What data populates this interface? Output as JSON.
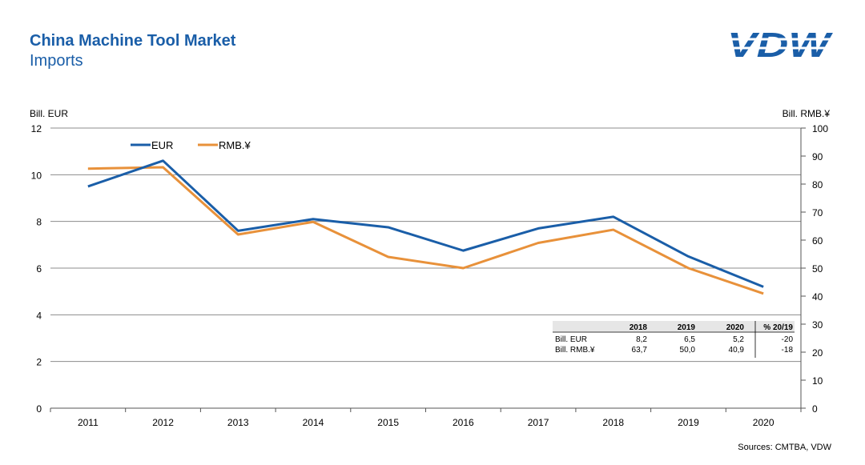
{
  "header": {
    "title": "China Machine Tool Market",
    "subtitle": "Imports",
    "logo_text": "VDW"
  },
  "source": "Sources: CMTBA, VDW",
  "colors": {
    "eur": "#1a5ea8",
    "rmb": "#e8913a",
    "title": "#1a5ea8"
  },
  "chart_data": {
    "type": "line",
    "x": [
      "2011",
      "2012",
      "2013",
      "2014",
      "2015",
      "2016",
      "2017",
      "2018",
      "2019",
      "2020"
    ],
    "series": [
      {
        "name": "EUR",
        "axis": "left",
        "values": [
          9.5,
          10.6,
          7.6,
          8.1,
          7.75,
          6.75,
          7.7,
          8.2,
          6.5,
          5.2
        ]
      },
      {
        "name": "RMB.¥",
        "axis": "right",
        "values": [
          85.5,
          86.0,
          62.0,
          66.5,
          54.0,
          50.0,
          59.0,
          63.7,
          50.0,
          40.9
        ]
      }
    ],
    "ylabel_left": "Bill. EUR",
    "ylabel_right": "Bill. RMB.¥",
    "ylim_left": [
      0,
      12
    ],
    "ylim_right": [
      0,
      100
    ],
    "yticks_left": [
      0,
      2,
      4,
      6,
      8,
      10,
      12
    ],
    "yticks_right": [
      0,
      10,
      20,
      30,
      40,
      50,
      60,
      70,
      80,
      90,
      100
    ],
    "grid": "horizontal",
    "legend_position": "top-left",
    "table": {
      "headers": [
        "",
        "2018",
        "2019",
        "2020",
        "% 20/19"
      ],
      "rows": [
        [
          "Bill. EUR",
          "8,2",
          "6,5",
          "5,2",
          "-20"
        ],
        [
          "Bill. RMB.¥",
          "63,7",
          "50,0",
          "40,9",
          "-18"
        ]
      ]
    }
  }
}
